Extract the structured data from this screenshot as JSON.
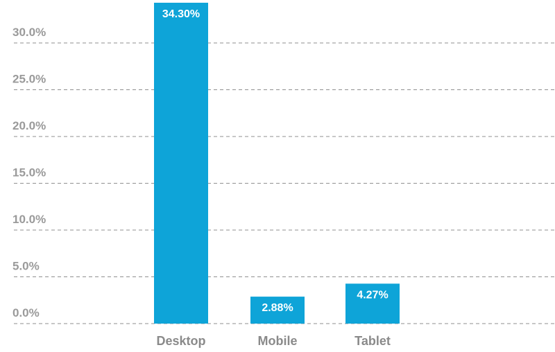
{
  "chart_data": {
    "type": "bar",
    "title": "",
    "xlabel": "",
    "ylabel": "",
    "categories": [
      "Desktop",
      "Mobile",
      "Tablet"
    ],
    "values": [
      34.3,
      2.88,
      4.27
    ],
    "data_labels": [
      "34.30%",
      "2.88%",
      "4.27%"
    ],
    "ylim": [
      0,
      34.3
    ],
    "yticks": [
      0,
      5,
      10,
      15,
      20,
      25,
      30
    ],
    "ytick_labels": [
      "0.0%",
      "5.0%",
      "10.0%",
      "15.0%",
      "20.0%",
      "25.0%",
      "30.0%"
    ],
    "grid": true,
    "grid_style": "dashed",
    "legend": "none",
    "colors": {
      "bar": "#0ea4d8",
      "gridline": "#8f8f8f",
      "tick_text": "#9a9a9a",
      "category_text": "#8a8a8a",
      "data_label_text": "#ffffff"
    }
  }
}
